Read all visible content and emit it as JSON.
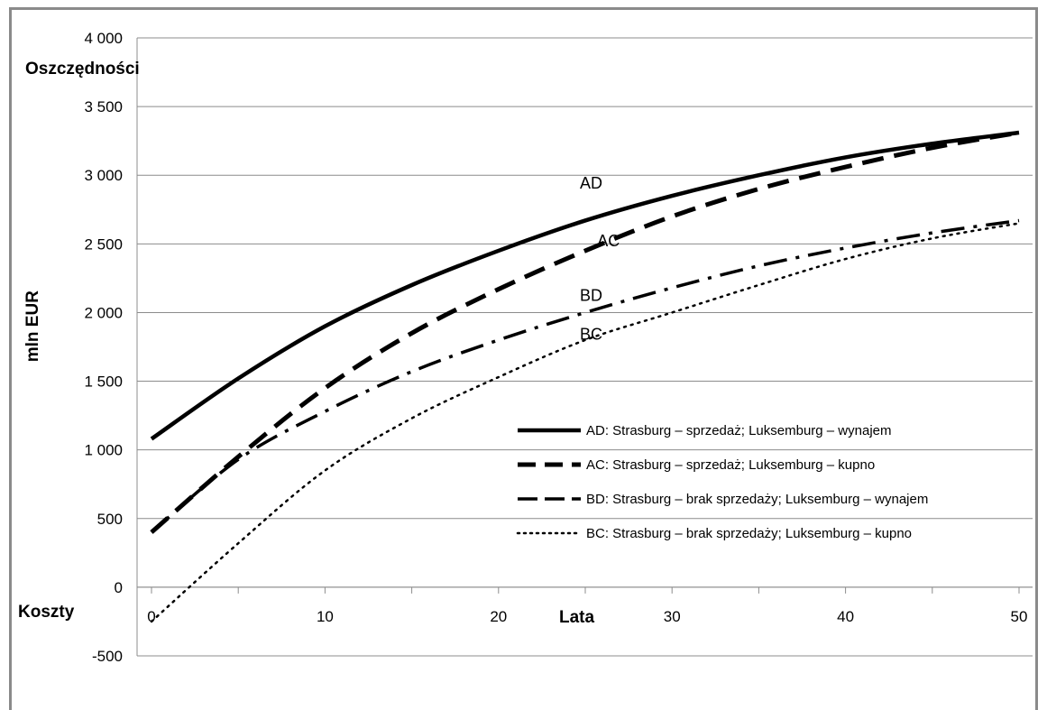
{
  "chart_data": {
    "type": "line",
    "ylabel": "mln EUR",
    "xlabel": "Lata",
    "ylim": [
      -500,
      4000
    ],
    "xlim": [
      0,
      50
    ],
    "y_ticks": [
      -500,
      0,
      500,
      1000,
      1500,
      2000,
      2500,
      3000,
      3500,
      4000
    ],
    "y_tick_labels": [
      "-500",
      "0",
      "500",
      "1 000",
      "1 500",
      "2 000",
      "2 500",
      "3 000",
      "3 500",
      "4 000"
    ],
    "x_ticks": [
      0,
      10,
      20,
      30,
      40,
      50
    ],
    "x_tick_labels": [
      "0",
      "10",
      "20",
      "30",
      "40",
      "50"
    ],
    "grid": "horizontal",
    "top_annotation": "Oszczędności",
    "bottom_annotation": "Koszty",
    "legend_position": "center-right",
    "series": [
      {
        "name": "AD: Strasburg – sprzedaż; Luksemburg – wynajem",
        "label": "AD",
        "style": "solid",
        "x": [
          0,
          5,
          10,
          15,
          20,
          25,
          30,
          35,
          40,
          45,
          50
        ],
        "y": [
          1080,
          1520,
          1900,
          2200,
          2450,
          2670,
          2850,
          3000,
          3130,
          3230,
          3310
        ]
      },
      {
        "name": "AC: Strasburg – sprzedaż; Luksemburg – kupno",
        "label": "AC",
        "style": "dashed",
        "x": [
          0,
          5,
          10,
          15,
          20,
          25,
          30,
          35,
          40,
          45,
          50
        ],
        "y": [
          400,
          950,
          1450,
          1850,
          2170,
          2450,
          2700,
          2900,
          3060,
          3200,
          3310
        ]
      },
      {
        "name": "BD: Strasburg – brak sprzedaży; Luksemburg – wynajem",
        "label": "BD",
        "style": "dash-dot",
        "x": [
          0,
          5,
          10,
          15,
          20,
          25,
          30,
          35,
          40,
          45,
          50
        ],
        "y": [
          400,
          930,
          1280,
          1570,
          1800,
          2000,
          2180,
          2340,
          2470,
          2580,
          2670
        ]
      },
      {
        "name": "BC: Strasburg – brak sprzedaży; Luksemburg – kupno",
        "label": "BC",
        "style": "dotted",
        "x": [
          0,
          5,
          10,
          15,
          20,
          25,
          30,
          35,
          40,
          45,
          50
        ],
        "y": [
          -250,
          320,
          850,
          1230,
          1530,
          1800,
          2000,
          2200,
          2390,
          2540,
          2650
        ]
      }
    ]
  }
}
